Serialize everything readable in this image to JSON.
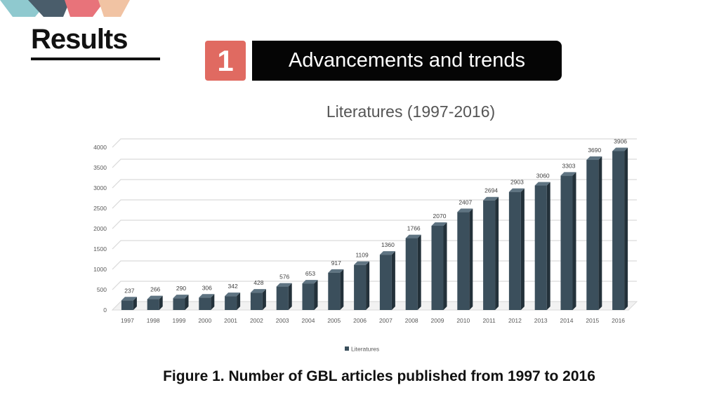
{
  "header": {
    "title": "Results",
    "badge_number": "1",
    "banner_text": "Advancements and trends"
  },
  "colors": {
    "bar_front": "#3b4f5c",
    "bar_side": "#23313a",
    "bar_top": "#5f7482",
    "badge": "#e06a61",
    "banner": "#050505"
  },
  "chart_data": {
    "type": "bar",
    "title": "Literatures (1997-2016)",
    "xlabel": "",
    "ylabel": "",
    "ylim": [
      0,
      4000
    ],
    "yticks": [
      0,
      500,
      1000,
      1500,
      2000,
      2500,
      3000,
      3500,
      4000
    ],
    "grid": true,
    "legend_position": "bottom",
    "categories": [
      "1997",
      "1998",
      "1999",
      "2000",
      "2001",
      "2002",
      "2003",
      "2004",
      "2005",
      "2006",
      "2007",
      "2008",
      "2009",
      "2010",
      "2011",
      "2012",
      "2013",
      "2014",
      "2015",
      "2016"
    ],
    "series": [
      {
        "name": "Literatures",
        "values": [
          237,
          266,
          290,
          306,
          342,
          428,
          576,
          653,
          917,
          1109,
          1360,
          1766,
          2070,
          2407,
          2694,
          2903,
          3060,
          3303,
          3690,
          3906
        ]
      }
    ]
  },
  "caption": "Figure 1. Number of GBL articles published from 1997 to 2016"
}
